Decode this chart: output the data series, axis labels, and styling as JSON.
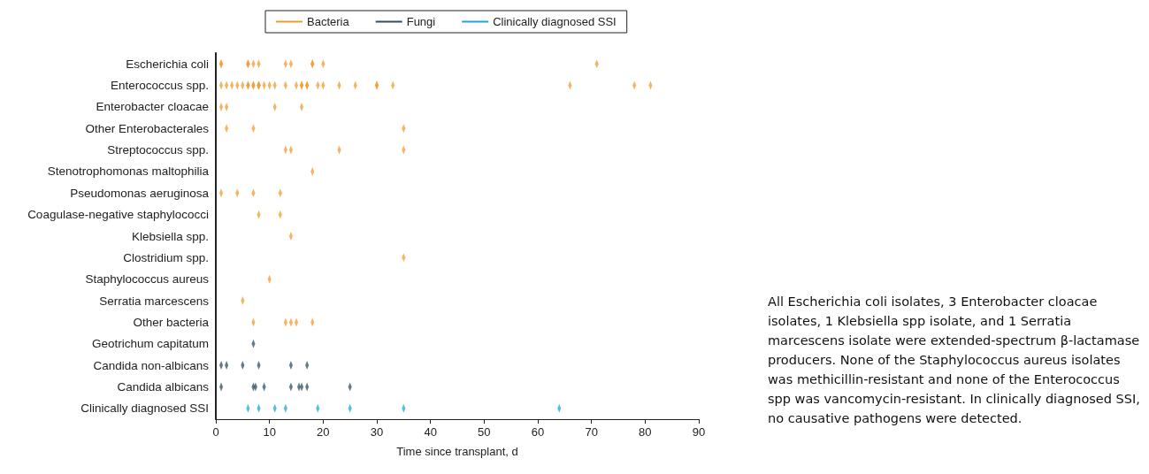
{
  "chart_data": {
    "type": "scatter",
    "orientation": "horizontal",
    "xlabel": "Time since transplant, d",
    "categories": [
      "Escherichia coli",
      "Enterococcus spp.",
      "Enterobacter cloacae",
      "Other Enterobacterales",
      "Streptococcus spp.",
      "Stenotrophomonas maltophilia",
      "Pseudomonas aeruginosa",
      "Coagulase-negative staphylococci",
      "Klebsiella spp.",
      "Clostridium spp.",
      "Staphylococcus aureus",
      "Serratia marcescens",
      "Other bacteria",
      "Geotrichum capitatum",
      "Candida non-albicans",
      "Candida albicans",
      "Clinically diagnosed SSI"
    ],
    "series": [
      {
        "name": "Bacteria",
        "color": "#f39a2e",
        "x": [
          "Escherichia coli",
          "Escherichia coli",
          "Escherichia coli",
          "Escherichia coli",
          "Escherichia coli",
          "Escherichia coli",
          "Escherichia coli",
          "Escherichia coli",
          "Escherichia coli",
          "Escherichia coli",
          "Escherichia coli",
          "Escherichia coli",
          "Enterococcus spp.",
          "Enterococcus spp.",
          "Enterococcus spp.",
          "Enterococcus spp.",
          "Enterococcus spp.",
          "Enterococcus spp.",
          "Enterococcus spp.",
          "Enterococcus spp.",
          "Enterococcus spp.",
          "Enterococcus spp.",
          "Enterococcus spp.",
          "Enterococcus spp.",
          "Enterococcus spp.",
          "Enterococcus spp.",
          "Enterococcus spp.",
          "Enterococcus spp.",
          "Enterococcus spp.",
          "Enterococcus spp.",
          "Enterococcus spp.",
          "Enterococcus spp.",
          "Enterococcus spp.",
          "Enterococcus spp.",
          "Enterococcus spp.",
          "Enterococcus spp.",
          "Enterococcus spp.",
          "Enterococcus spp.",
          "Enterococcus spp.",
          "Enterococcus spp.",
          "Enterococcus spp.",
          "Enterococcus spp.",
          "Enterococcus spp.",
          "Enterobacter cloacae",
          "Enterobacter cloacae",
          "Enterobacter cloacae",
          "Enterobacter cloacae",
          "Other Enterobacterales",
          "Other Enterobacterales",
          "Other Enterobacterales",
          "Streptococcus spp.",
          "Streptococcus spp.",
          "Streptococcus spp.",
          "Streptococcus spp.",
          "Stenotrophomonas maltophilia",
          "Pseudomonas aeruginosa",
          "Pseudomonas aeruginosa",
          "Pseudomonas aeruginosa",
          "Pseudomonas aeruginosa",
          "Coagulase-negative staphylococci",
          "Coagulase-negative staphylococci",
          "Klebsiella spp.",
          "Clostridium spp.",
          "Staphylococcus aureus",
          "Serratia marcescens",
          "Other bacteria",
          "Other bacteria",
          "Other bacteria",
          "Other bacteria",
          "Other bacteria"
        ],
        "values": [
          1,
          1,
          6,
          6,
          7,
          8,
          13,
          14,
          18,
          18,
          20,
          71,
          1,
          2,
          3,
          4,
          5,
          6,
          6,
          7,
          7,
          8,
          8,
          8,
          9,
          10,
          11,
          13,
          15,
          16,
          16,
          17,
          17,
          19,
          20,
          23,
          26,
          30,
          30,
          33,
          66,
          78,
          81,
          1,
          2,
          11,
          16,
          2,
          7,
          35,
          13,
          14,
          23,
          35,
          18,
          1,
          4,
          7,
          12,
          8,
          12,
          14,
          35,
          10,
          5,
          7,
          13,
          14,
          15,
          18
        ]
      },
      {
        "name": "Fungi",
        "color": "#2f4f5f",
        "x": [
          "Geotrichum capitatum",
          "Candida non-albicans",
          "Candida non-albicans",
          "Candida non-albicans",
          "Candida non-albicans",
          "Candida non-albicans",
          "Candida non-albicans",
          "Candida albicans",
          "Candida albicans",
          "Candida albicans",
          "Candida albicans",
          "Candida albicans",
          "Candida albicans",
          "Candida albicans",
          "Candida albicans",
          "Candida albicans"
        ],
        "values": [
          7,
          1,
          2,
          5,
          8,
          14,
          17,
          1,
          7,
          7.4,
          9,
          14,
          15.5,
          16,
          17,
          25
        ]
      },
      {
        "name": "Clinically diagnosed SSI",
        "color": "#1aa7e0",
        "x": [
          "Clinically diagnosed SSI",
          "Clinically diagnosed SSI",
          "Clinically diagnosed SSI",
          "Clinically diagnosed SSI",
          "Clinically diagnosed SSI",
          "Clinically diagnosed SSI",
          "Clinically diagnosed SSI",
          "Clinically diagnosed SSI"
        ],
        "values": [
          6,
          8,
          11,
          13,
          19,
          25,
          35,
          64
        ]
      }
    ],
    "xlim": [
      0,
      90
    ],
    "xticks": [
      0,
      10,
      20,
      30,
      40,
      50,
      60,
      70,
      80,
      90
    ],
    "legend": "top",
    "grid": false,
    "annotations": [
      "All Escherichia coli isolates, 3 Enterobacter cloacae isolates, 1 Klebsiella spp isolate, and 1 Serratia marcescens isolate were extended-spectrum β-lactamase producers. None of the Staphylococcus aureus isolates was methicillin-resistant and none of the Enterococcus spp was vancomycin-resistant. In clinically diagnosed SSI, no causative pathogens were detected."
    ]
  }
}
